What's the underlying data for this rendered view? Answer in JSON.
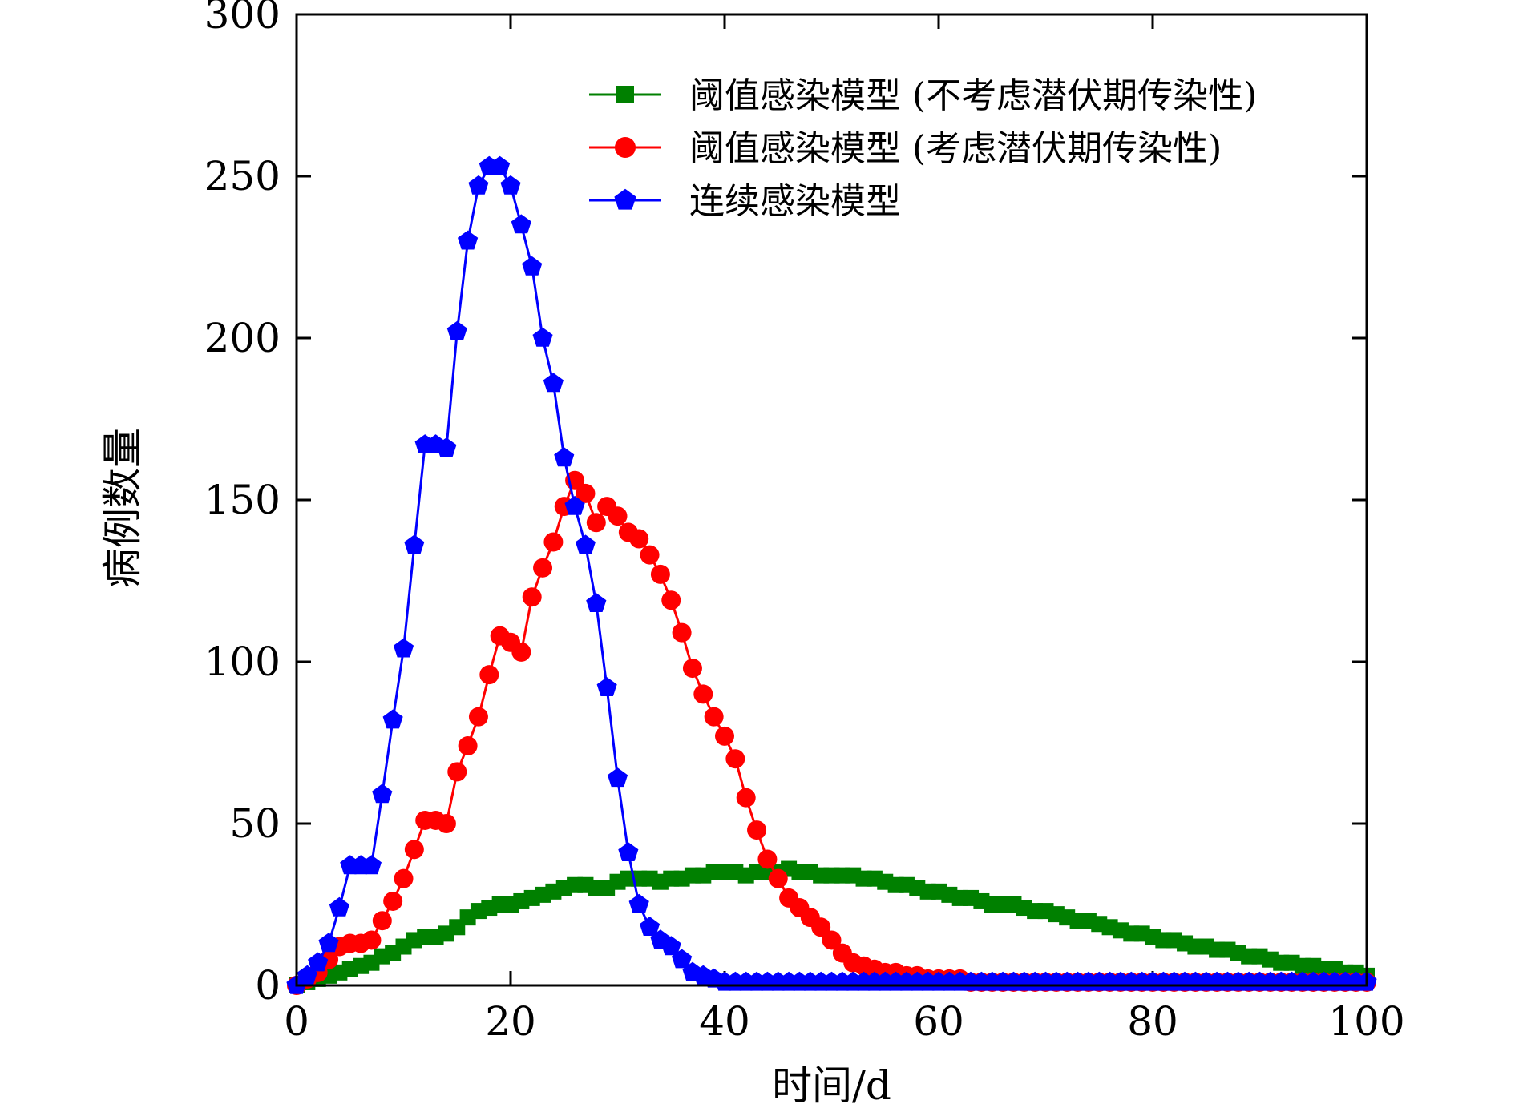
{
  "chart_data": {
    "type": "line",
    "title": "",
    "xlabel": "时间/d",
    "ylabel": "病例数量",
    "xlim": [
      0,
      100
    ],
    "ylim": [
      0,
      300
    ],
    "xticks": [
      "0",
      "20",
      "40",
      "60",
      "80",
      "100"
    ],
    "yticks": [
      "0",
      "50",
      "100",
      "150",
      "200",
      "250",
      "300"
    ],
    "grid": false,
    "legend_position": "top-right",
    "series": [
      {
        "name": "阈值感染模型 (不考虑潜伏期传染性)",
        "color": "#008000",
        "marker": "square",
        "x": [
          0,
          1,
          2,
          3,
          4,
          5,
          6,
          7,
          8,
          9,
          10,
          11,
          12,
          13,
          14,
          15,
          16,
          17,
          18,
          19,
          20,
          21,
          22,
          23,
          24,
          25,
          26,
          27,
          28,
          29,
          30,
          31,
          32,
          33,
          34,
          35,
          36,
          37,
          38,
          39,
          40,
          41,
          42,
          43,
          44,
          45,
          46,
          47,
          48,
          49,
          50,
          51,
          52,
          53,
          54,
          55,
          56,
          57,
          58,
          59,
          60,
          61,
          62,
          63,
          64,
          65,
          66,
          67,
          68,
          69,
          70,
          71,
          72,
          73,
          74,
          75,
          76,
          77,
          78,
          79,
          80,
          81,
          82,
          83,
          84,
          85,
          86,
          87,
          88,
          89,
          90,
          91,
          92,
          93,
          94,
          95,
          96,
          97,
          98,
          99,
          100
        ],
        "values": [
          0,
          1,
          2,
          3,
          4,
          5,
          6,
          7,
          9,
          10,
          12,
          14,
          15,
          15,
          16,
          18,
          21,
          23,
          24,
          25,
          25,
          26,
          27,
          28,
          29,
          30,
          31,
          31,
          30,
          30,
          32,
          33,
          33,
          33,
          32,
          33,
          33,
          34,
          34,
          35,
          35,
          35,
          34,
          35,
          35,
          35,
          36,
          35,
          35,
          34,
          34,
          34,
          34,
          33,
          33,
          32,
          31,
          31,
          30,
          29,
          29,
          28,
          27,
          27,
          26,
          25,
          25,
          25,
          24,
          23,
          23,
          22,
          21,
          20,
          20,
          19,
          18,
          17,
          16,
          16,
          15,
          14,
          14,
          13,
          12,
          12,
          11,
          11,
          10,
          9,
          9,
          8,
          7,
          7,
          6,
          6,
          5,
          5,
          4,
          4,
          3
        ]
      },
      {
        "name": "阈值感染模型 (考虑潜伏期传染性)",
        "color": "#ff0000",
        "marker": "circle",
        "x": [
          0,
          1,
          2,
          3,
          4,
          5,
          6,
          7,
          8,
          9,
          10,
          11,
          12,
          13,
          14,
          15,
          16,
          17,
          18,
          19,
          20,
          21,
          22,
          23,
          24,
          25,
          26,
          27,
          28,
          29,
          30,
          31,
          32,
          33,
          34,
          35,
          36,
          37,
          38,
          39,
          40,
          41,
          42,
          43,
          44,
          45,
          46,
          47,
          48,
          49,
          50,
          51,
          52,
          53,
          54,
          55,
          56,
          57,
          58,
          59,
          60,
          61,
          62,
          63,
          64,
          65,
          66,
          67,
          68,
          69,
          70,
          71,
          72,
          73,
          74,
          75,
          76,
          77,
          78,
          79,
          80,
          81,
          82,
          83,
          84,
          85,
          86,
          87,
          88,
          89,
          90,
          91,
          92,
          93,
          94,
          95,
          96,
          97,
          98,
          99,
          100
        ],
        "values": [
          0,
          2,
          4,
          8,
          12,
          13,
          13,
          14,
          20,
          26,
          33,
          42,
          51,
          51,
          50,
          66,
          74,
          83,
          96,
          108,
          106,
          103,
          120,
          129,
          137,
          148,
          156,
          152,
          143,
          148,
          145,
          140,
          138,
          133,
          127,
          119,
          109,
          98,
          90,
          83,
          77,
          70,
          58,
          48,
          39,
          33,
          27,
          24,
          21,
          18,
          14,
          10,
          7,
          6,
          5,
          4,
          4,
          3,
          3,
          2,
          2,
          2,
          2,
          1,
          1,
          1,
          1,
          1,
          1,
          1,
          1,
          1,
          1,
          1,
          1,
          1,
          1,
          1,
          1,
          1,
          1,
          1,
          1,
          1,
          1,
          1,
          1,
          1,
          1,
          1,
          1,
          1,
          1,
          1,
          1,
          1,
          1,
          1,
          1,
          1,
          1
        ]
      },
      {
        "name": "连续感染模型",
        "color": "#0000ff",
        "marker": "pentagon",
        "x": [
          0,
          1,
          2,
          3,
          4,
          5,
          6,
          7,
          8,
          9,
          10,
          11,
          12,
          13,
          14,
          15,
          16,
          17,
          18,
          19,
          20,
          21,
          22,
          23,
          24,
          25,
          26,
          27,
          28,
          29,
          30,
          31,
          32,
          33,
          34,
          35,
          36,
          37,
          38,
          39,
          40,
          41,
          42,
          43,
          44,
          45,
          46,
          47,
          48,
          49,
          50,
          51,
          52,
          53,
          54,
          55,
          56,
          57,
          58,
          59,
          60,
          61,
          62,
          63,
          64,
          65,
          66,
          67,
          68,
          69,
          70,
          71,
          72,
          73,
          74,
          75,
          76,
          77,
          78,
          79,
          80,
          81,
          82,
          83,
          84,
          85,
          86,
          87,
          88,
          89,
          90,
          91,
          92,
          93,
          94,
          95,
          96,
          97,
          98,
          99,
          100
        ],
        "values": [
          0,
          3,
          7,
          13,
          24,
          37,
          37,
          37,
          59,
          82,
          104,
          136,
          167,
          167,
          166,
          202,
          230,
          247,
          253,
          253,
          247,
          235,
          222,
          200,
          186,
          163,
          148,
          136,
          118,
          92,
          64,
          41,
          25,
          18,
          14,
          12,
          8,
          4,
          3,
          2,
          1,
          1,
          1,
          1,
          1,
          1,
          1,
          1,
          1,
          1,
          1,
          1,
          1,
          1,
          1,
          1,
          1,
          1,
          1,
          1,
          1,
          1,
          1,
          1,
          1,
          1,
          1,
          1,
          1,
          1,
          1,
          1,
          1,
          1,
          1,
          1,
          1,
          1,
          1,
          1,
          1,
          1,
          1,
          1,
          1,
          1,
          1,
          1,
          1,
          1,
          1,
          1,
          1,
          1,
          1,
          1,
          1,
          1,
          1,
          1,
          1
        ]
      }
    ]
  }
}
